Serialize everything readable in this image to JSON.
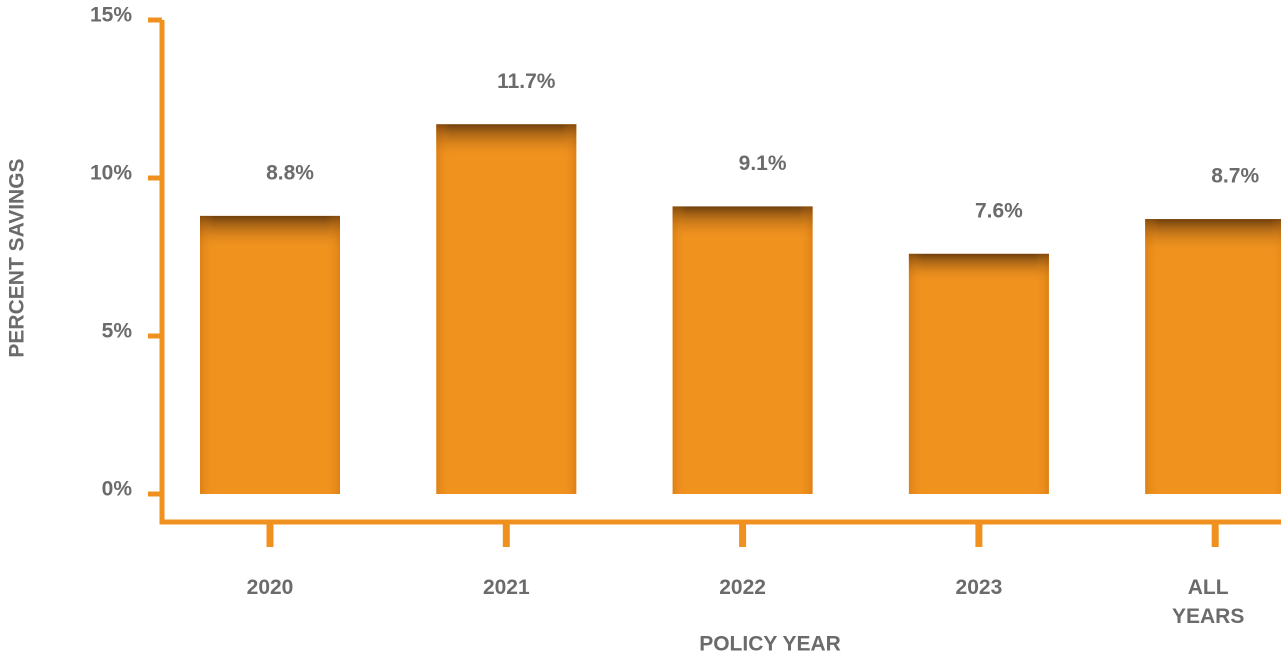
{
  "chart_data": {
    "type": "bar",
    "y_label": "PERCENT SAVINGS",
    "x_label": "POLICY YEAR",
    "categories": [
      "2020",
      "2021",
      "2022",
      "2023",
      "ALL YEARS"
    ],
    "values": [
      8.8,
      11.7,
      9.1,
      7.6,
      8.7
    ],
    "value_labels": [
      "8.8%",
      "11.7%",
      "9.1%",
      "7.6%",
      "8.7%"
    ],
    "color": "#f0921e",
    "axis_color": "#f0911f",
    "ylim": [
      0,
      15
    ],
    "yticks": [
      {
        "value": 0,
        "label": "0%"
      },
      {
        "value": 5,
        "label": "5%"
      },
      {
        "value": 10,
        "label": "10%"
      },
      {
        "value": 15,
        "label": "15%"
      }
    ],
    "grid": false
  }
}
